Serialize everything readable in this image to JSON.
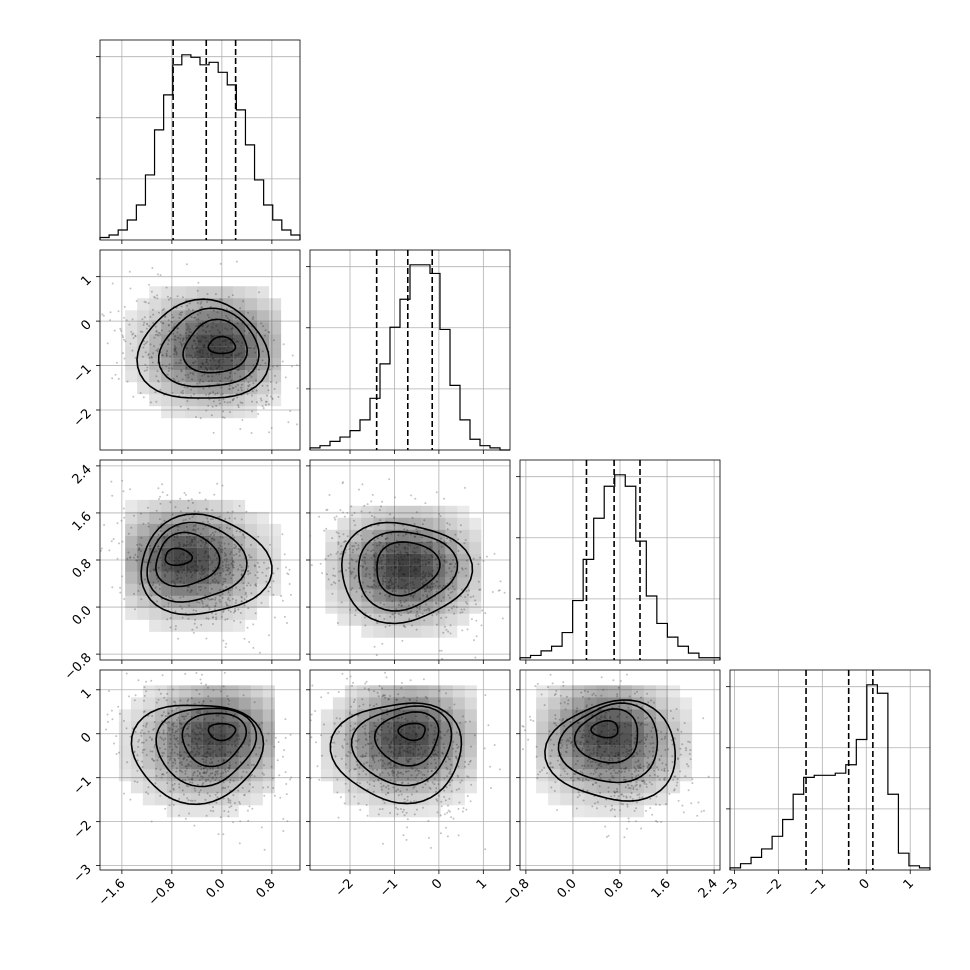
{
  "chart_data": {
    "type": "corner",
    "variables": 4,
    "grid": true,
    "ranges": [
      [
        -1.95,
        1.25
      ],
      [
        -2.9,
        1.6
      ],
      [
        -0.9,
        2.5
      ],
      [
        -3.1,
        1.45
      ]
    ],
    "ticks": [
      [
        -1.6,
        -0.8,
        0.0,
        0.8
      ],
      [
        -2,
        -1,
        0,
        1
      ],
      [
        -0.8,
        0.0,
        0.8,
        1.6,
        2.4
      ],
      [
        -3,
        -2,
        -1,
        0,
        1
      ]
    ],
    "tick_labels": [
      [
        "−1.6",
        "−0.8",
        "0.0",
        "0.8"
      ],
      [
        "−2",
        "−1",
        "0",
        "1"
      ],
      [
        "−0.8",
        "0.0",
        "0.8",
        "1.6",
        "2.4"
      ],
      [
        "−3",
        "−2",
        "−1",
        "0",
        "1"
      ]
    ],
    "quantiles": [
      [
        -0.78,
        -0.25,
        0.22
      ],
      [
        -1.4,
        -0.7,
        -0.15
      ],
      [
        0.23,
        0.7,
        1.14
      ],
      [
        -1.37,
        -0.4,
        0.15
      ]
    ],
    "histograms": [
      {
        "edges_min": -1.95,
        "edges_max": 1.25,
        "counts": [
          1,
          2,
          4,
          8,
          14,
          26,
          44,
          58,
          70,
          74,
          73,
          70,
          71,
          67,
          62,
          52,
          38,
          24,
          14,
          8,
          4,
          2
        ]
      },
      {
        "edges_min": -2.9,
        "edges_max": 1.6,
        "counts": [
          1,
          2,
          4,
          6,
          9,
          14,
          24,
          40,
          57,
          70,
          86,
          86,
          82,
          56,
          30,
          14,
          5,
          2,
          1,
          0
        ]
      },
      {
        "edges_min": -0.9,
        "edges_max": 2.5,
        "counts": [
          1,
          2,
          4,
          6,
          12,
          26,
          44,
          62,
          76,
          81,
          76,
          52,
          28,
          16,
          10,
          6,
          3,
          1,
          1
        ]
      },
      {
        "edges_min": -3.1,
        "edges_max": 1.45,
        "counts": [
          1,
          3,
          6,
          10,
          16,
          24,
          36,
          44,
          45,
          45,
          46,
          50,
          62,
          88,
          84,
          36,
          8,
          2,
          1
        ]
      }
    ],
    "density_panels": [
      {
        "row": 1,
        "col": 0,
        "center": [
          -0.3,
          -0.7
        ],
        "peak": [
          0.0,
          -0.55
        ],
        "contours": 4
      },
      {
        "row": 2,
        "col": 0,
        "center": [
          -0.3,
          0.7
        ],
        "peak": [
          -0.7,
          0.85
        ],
        "contours": 4
      },
      {
        "row": 2,
        "col": 1,
        "center": [
          -0.8,
          0.6
        ],
        "peak": [
          -0.7,
          0.7
        ],
        "contours": 3
      },
      {
        "row": 3,
        "col": 0,
        "center": [
          -0.4,
          -0.4
        ],
        "peak": [
          0.0,
          0.05
        ],
        "contours": 4
      },
      {
        "row": 3,
        "col": 1,
        "center": [
          -0.9,
          -0.4
        ],
        "peak": [
          -0.6,
          0.05
        ],
        "contours": 4
      },
      {
        "row": 3,
        "col": 2,
        "center": [
          0.7,
          -0.4
        ],
        "peak": [
          0.55,
          0.1
        ],
        "contours": 4
      }
    ]
  },
  "colors": {
    "axis": "#000000",
    "grid": "#b0b0b0",
    "points": "#7a7a7a",
    "shade_dark": "#000000"
  }
}
